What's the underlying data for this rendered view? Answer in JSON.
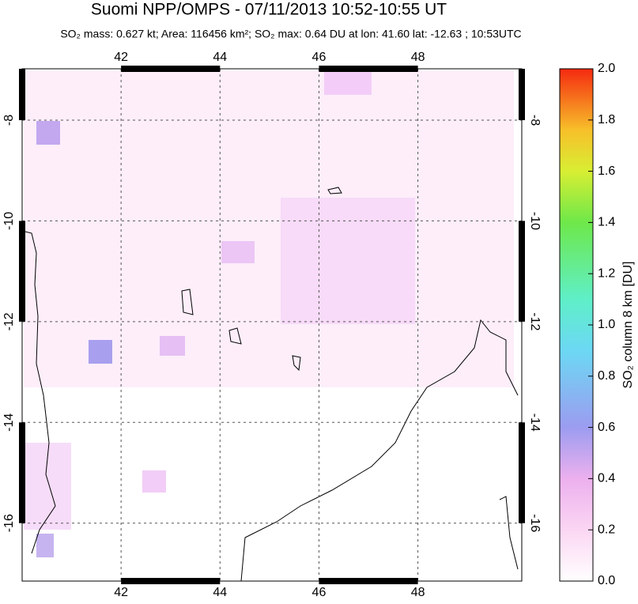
{
  "map": {
    "title": "Suomi NPP/OMPS - 07/11/2013 10:52-10:55 UT",
    "subtitle": "SO₂ mass: 0.627 kt; Area: 116456 km²; SO₂ max: 0.64 DU at lon: 41.60 lat: -12.63 ; 10:53UTC",
    "xlim": [
      40.0,
      50.1
    ],
    "ylim": [
      -17.15,
      -6.98
    ],
    "xticks": [
      42,
      44,
      46,
      48
    ],
    "yticks": [
      -8,
      -10,
      -12,
      -14,
      -16
    ],
    "colorbar": {
      "label": "SO₂ column 8 km [DU]",
      "lim": [
        0,
        2
      ],
      "ticks": [
        {
          "value": 0,
          "label": "0.0"
        },
        {
          "value": 0.2,
          "label": "0.2"
        },
        {
          "value": 0.4,
          "label": "0.4"
        },
        {
          "value": 0.6,
          "label": "0.6"
        },
        {
          "value": 0.8,
          "label": "0.8"
        },
        {
          "value": 1,
          "label": "1.0"
        },
        {
          "value": 1.2,
          "label": "1.2"
        },
        {
          "value": 1.4,
          "label": "1.4"
        },
        {
          "value": 1.6,
          "label": "1.6"
        },
        {
          "value": 1.8,
          "label": "1.8"
        },
        {
          "value": 2,
          "label": "2.0"
        }
      ]
    }
  }
}
